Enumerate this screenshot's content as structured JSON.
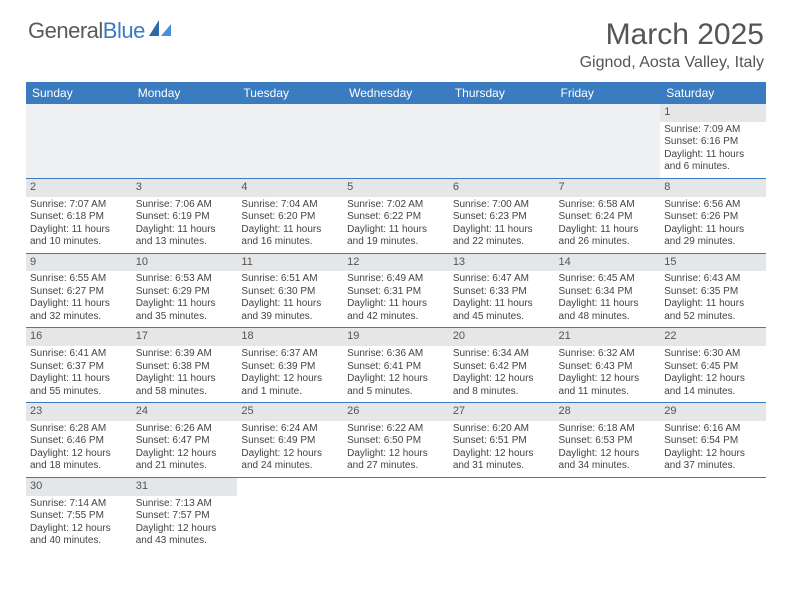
{
  "brand": {
    "part1": "General",
    "part2": "Blue"
  },
  "title": "March 2025",
  "location": "Gignod, Aosta Valley, Italy",
  "colors": {
    "header_bg": "#3b7bbf",
    "header_fg": "#ffffff",
    "daynum_bg": "#e4e6e8",
    "blank_bg": "#eef0f1",
    "text": "#444444",
    "rule": "#3b7bbf"
  },
  "dow": [
    "Sunday",
    "Monday",
    "Tuesday",
    "Wednesday",
    "Thursday",
    "Friday",
    "Saturday"
  ],
  "days": {
    "1": {
      "sunrise": "7:09 AM",
      "sunset": "6:16 PM",
      "daylight": "11 hours and 6 minutes."
    },
    "2": {
      "sunrise": "7:07 AM",
      "sunset": "6:18 PM",
      "daylight": "11 hours and 10 minutes."
    },
    "3": {
      "sunrise": "7:06 AM",
      "sunset": "6:19 PM",
      "daylight": "11 hours and 13 minutes."
    },
    "4": {
      "sunrise": "7:04 AM",
      "sunset": "6:20 PM",
      "daylight": "11 hours and 16 minutes."
    },
    "5": {
      "sunrise": "7:02 AM",
      "sunset": "6:22 PM",
      "daylight": "11 hours and 19 minutes."
    },
    "6": {
      "sunrise": "7:00 AM",
      "sunset": "6:23 PM",
      "daylight": "11 hours and 22 minutes."
    },
    "7": {
      "sunrise": "6:58 AM",
      "sunset": "6:24 PM",
      "daylight": "11 hours and 26 minutes."
    },
    "8": {
      "sunrise": "6:56 AM",
      "sunset": "6:26 PM",
      "daylight": "11 hours and 29 minutes."
    },
    "9": {
      "sunrise": "6:55 AM",
      "sunset": "6:27 PM",
      "daylight": "11 hours and 32 minutes."
    },
    "10": {
      "sunrise": "6:53 AM",
      "sunset": "6:29 PM",
      "daylight": "11 hours and 35 minutes."
    },
    "11": {
      "sunrise": "6:51 AM",
      "sunset": "6:30 PM",
      "daylight": "11 hours and 39 minutes."
    },
    "12": {
      "sunrise": "6:49 AM",
      "sunset": "6:31 PM",
      "daylight": "11 hours and 42 minutes."
    },
    "13": {
      "sunrise": "6:47 AM",
      "sunset": "6:33 PM",
      "daylight": "11 hours and 45 minutes."
    },
    "14": {
      "sunrise": "6:45 AM",
      "sunset": "6:34 PM",
      "daylight": "11 hours and 48 minutes."
    },
    "15": {
      "sunrise": "6:43 AM",
      "sunset": "6:35 PM",
      "daylight": "11 hours and 52 minutes."
    },
    "16": {
      "sunrise": "6:41 AM",
      "sunset": "6:37 PM",
      "daylight": "11 hours and 55 minutes."
    },
    "17": {
      "sunrise": "6:39 AM",
      "sunset": "6:38 PM",
      "daylight": "11 hours and 58 minutes."
    },
    "18": {
      "sunrise": "6:37 AM",
      "sunset": "6:39 PM",
      "daylight": "12 hours and 1 minute."
    },
    "19": {
      "sunrise": "6:36 AM",
      "sunset": "6:41 PM",
      "daylight": "12 hours and 5 minutes."
    },
    "20": {
      "sunrise": "6:34 AM",
      "sunset": "6:42 PM",
      "daylight": "12 hours and 8 minutes."
    },
    "21": {
      "sunrise": "6:32 AM",
      "sunset": "6:43 PM",
      "daylight": "12 hours and 11 minutes."
    },
    "22": {
      "sunrise": "6:30 AM",
      "sunset": "6:45 PM",
      "daylight": "12 hours and 14 minutes."
    },
    "23": {
      "sunrise": "6:28 AM",
      "sunset": "6:46 PM",
      "daylight": "12 hours and 18 minutes."
    },
    "24": {
      "sunrise": "6:26 AM",
      "sunset": "6:47 PM",
      "daylight": "12 hours and 21 minutes."
    },
    "25": {
      "sunrise": "6:24 AM",
      "sunset": "6:49 PM",
      "daylight": "12 hours and 24 minutes."
    },
    "26": {
      "sunrise": "6:22 AM",
      "sunset": "6:50 PM",
      "daylight": "12 hours and 27 minutes."
    },
    "27": {
      "sunrise": "6:20 AM",
      "sunset": "6:51 PM",
      "daylight": "12 hours and 31 minutes."
    },
    "28": {
      "sunrise": "6:18 AM",
      "sunset": "6:53 PM",
      "daylight": "12 hours and 34 minutes."
    },
    "29": {
      "sunrise": "6:16 AM",
      "sunset": "6:54 PM",
      "daylight": "12 hours and 37 minutes."
    },
    "30": {
      "sunrise": "7:14 AM",
      "sunset": "7:55 PM",
      "daylight": "12 hours and 40 minutes."
    },
    "31": {
      "sunrise": "7:13 AM",
      "sunset": "7:57 PM",
      "daylight": "12 hours and 43 minutes."
    }
  },
  "labels": {
    "sunrise": "Sunrise: ",
    "sunset": "Sunset: ",
    "daylight": "Daylight: "
  },
  "layout": {
    "weeks": [
      [
        null,
        null,
        null,
        null,
        null,
        null,
        "1"
      ],
      [
        "2",
        "3",
        "4",
        "5",
        "6",
        "7",
        "8"
      ],
      [
        "9",
        "10",
        "11",
        "12",
        "13",
        "14",
        "15"
      ],
      [
        "16",
        "17",
        "18",
        "19",
        "20",
        "21",
        "22"
      ],
      [
        "23",
        "24",
        "25",
        "26",
        "27",
        "28",
        "29"
      ],
      [
        "30",
        "31",
        null,
        null,
        null,
        null,
        null
      ]
    ]
  }
}
